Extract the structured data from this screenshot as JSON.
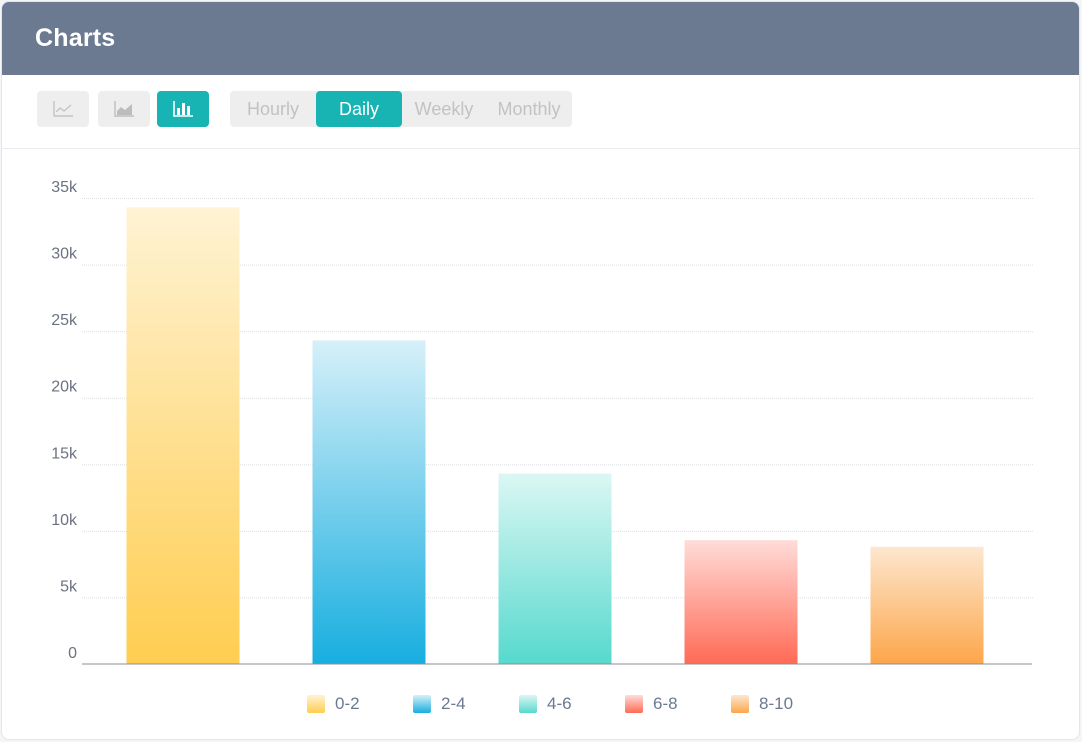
{
  "header": {
    "title": "Charts"
  },
  "toolbar": {
    "chart_types": [
      {
        "name": "line-chart-icon",
        "active": false
      },
      {
        "name": "area-chart-icon",
        "active": false
      },
      {
        "name": "bar-chart-icon",
        "active": true
      }
    ],
    "periods": [
      {
        "label": "Hourly",
        "active": false
      },
      {
        "label": "Daily",
        "active": true
      },
      {
        "label": "Weekly",
        "active": false
      },
      {
        "label": "Monthly",
        "active": false
      }
    ]
  },
  "colors": {
    "header": "#6b7a91",
    "accent": "#18b4b3",
    "series": [
      {
        "top": "#fff3d4",
        "bottom": "#ffcd50"
      },
      {
        "top": "#d6f0f9",
        "bottom": "#17aedf"
      },
      {
        "top": "#dcf7f4",
        "bottom": "#56d9cd"
      },
      {
        "top": "#ffdcd8",
        "bottom": "#ff6a55"
      },
      {
        "top": "#fde7cf",
        "bottom": "#fda64a"
      }
    ]
  },
  "chart_data": {
    "type": "bar",
    "categories": [
      "0-2",
      "2-4",
      "4-6",
      "6-8",
      "8-10"
    ],
    "values": [
      34300,
      24300,
      14300,
      9300,
      8800
    ],
    "yticks": [
      "0",
      "5k",
      "10k",
      "15k",
      "20k",
      "25k",
      "30k",
      "35k"
    ],
    "ylim": [
      0,
      35000
    ],
    "grid": true,
    "legend": "bottom"
  }
}
